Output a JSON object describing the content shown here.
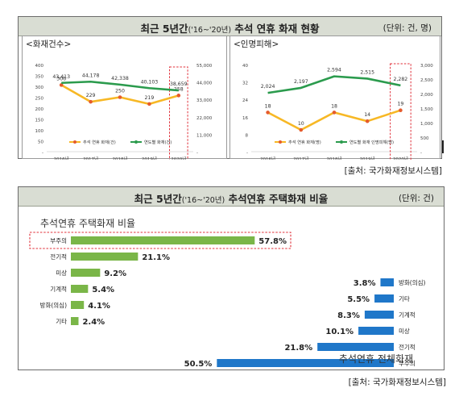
{
  "top": {
    "title_main": "최근 5년간",
    "title_period": "('16~'20년)",
    "title_rest": " 추석 연휴 화재 현황",
    "unit": "(단위: 건, 명)",
    "source": "[출처: 국가화재정보시스템]"
  },
  "bottom": {
    "title_main": "최근 5년간",
    "title_period": "('16~'20년)",
    "title_rest": " 추석연휴 주택화재 비율",
    "unit": "(단위: 건)",
    "source": "[출처: 국가화재정보시스템]"
  },
  "colors": {
    "orange": "#f7b825",
    "orange_marker": "#e55b2c",
    "green": "#2b9b4d",
    "bar_green": "#7ab648",
    "bar_blue": "#1f77c9",
    "highlight": "#e0303a",
    "title_bg": "#d9ddd3"
  },
  "chart_data": [
    {
      "type": "line",
      "title": "<화재건수>",
      "categories": [
        "2016년",
        "2017년",
        "2018년",
        "2019년",
        "2020년"
      ],
      "y_left_ticks": [
        "400",
        "350",
        "300",
        "250",
        "200",
        "150",
        "100",
        "50",
        "-"
      ],
      "y_right_ticks": [
        "55,000",
        "44,000",
        "33,000",
        "22,000",
        "11,000",
        "-"
      ],
      "ylim_left": [
        0,
        400
      ],
      "ylim_right": [
        0,
        55000
      ],
      "highlight_category": "2020년",
      "series": [
        {
          "name": "추석 연휴 화재(건)",
          "axis": "left",
          "color": "#f7b825",
          "values": [
            306,
            229,
            250,
            219,
            258
          ],
          "labels": [
            "306",
            "229",
            "250",
            "219",
            "258"
          ]
        },
        {
          "name": "연도별 화재(건)",
          "axis": "right",
          "color": "#2b9b4d",
          "values": [
            43413,
            44178,
            42338,
            40103,
            38659
          ],
          "labels": [
            "43,413",
            "44,178",
            "42,338",
            "40,103",
            "38,659"
          ]
        }
      ]
    },
    {
      "type": "line",
      "title": "<인명피해>",
      "categories": [
        "2016년",
        "2017년",
        "2018년",
        "2019년",
        "2020년"
      ],
      "y_left_ticks": [
        "40",
        "32",
        "24",
        "16",
        "8",
        "-"
      ],
      "y_right_ticks": [
        "3,000",
        "2,500",
        "2,000",
        "1,500",
        "1,000",
        "500",
        "-"
      ],
      "ylim_left": [
        0,
        40
      ],
      "ylim_right": [
        0,
        3000
      ],
      "highlight_category": "2020년",
      "series": [
        {
          "name": "추석 연휴 화재(명)",
          "axis": "left",
          "color": "#f7b825",
          "values": [
            18,
            10,
            18,
            14,
            19
          ],
          "labels": [
            "18",
            "10",
            "18",
            "14",
            "19"
          ]
        },
        {
          "name": "연도별 화재 인명피해(명)",
          "axis": "right",
          "color": "#2b9b4d",
          "values": [
            2024,
            2197,
            2594,
            2515,
            2282
          ],
          "labels": [
            "2,024",
            "2,197",
            "2,594",
            "2,515",
            "2,282"
          ]
        }
      ]
    },
    {
      "type": "bar",
      "orientation": "horizontal",
      "title": "추석연휴 주택화재 비율",
      "categories": [
        "부주의",
        "전기적",
        "미상",
        "기계적",
        "방화(의심)",
        "기타"
      ],
      "values": [
        57.8,
        21.1,
        9.2,
        5.4,
        4.1,
        2.4
      ],
      "labels": [
        "57.8%",
        "21.1%",
        "9.2%",
        "5.4%",
        "4.1%",
        "2.4%"
      ],
      "color": "#7ab648",
      "highlight_category": "부주의"
    },
    {
      "type": "bar",
      "orientation": "horizontal",
      "title": "추석연휴 전체화재",
      "categories": [
        "방화(의심)",
        "기타",
        "기계적",
        "미상",
        "전기적",
        "부주의"
      ],
      "values": [
        3.8,
        5.5,
        8.3,
        10.1,
        21.8,
        50.5
      ],
      "labels": [
        "3.8%",
        "5.5%",
        "8.3%",
        "10.1%",
        "21.8%",
        "50.5%"
      ],
      "color": "#1f77c9"
    }
  ]
}
